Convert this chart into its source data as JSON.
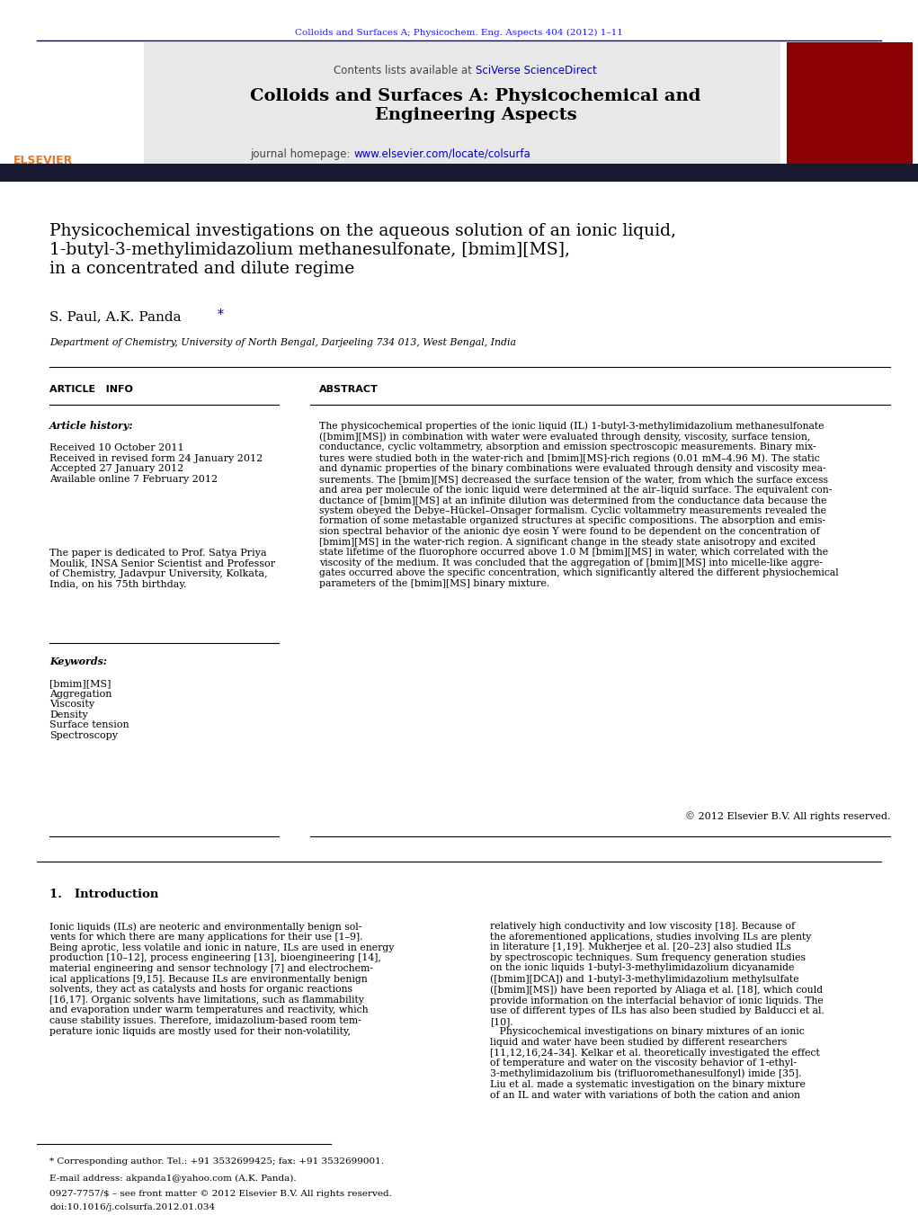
{
  "page_width": 10.21,
  "page_height": 13.51,
  "bg_color": "#ffffff",
  "top_journal_text": "Colloids and Surfaces A; Physicochem. Eng. Aspects 404 (2012) 1–11",
  "top_journal_color": "#1a1aff",
  "header_bg": "#e8e8e8",
  "header_contents": "Contents lists available at",
  "header_sciverse": "SciVerse ScienceDirect",
  "header_journal_title": "Colloids and Surfaces A: Physicochemical and\nEngineering Aspects",
  "header_homepage_label": "journal homepage:",
  "header_homepage_url": "www.elsevier.com/locate/colsurfa",
  "dark_bar_color": "#1a1a2e",
  "article_title": "Physicochemical investigations on the aqueous solution of an ionic liquid,\n1-butyl-3-methylimidazolium methanesulfonate, [bmim][MS],\nin a concentrated and dilute regime",
  "authors": "S. Paul, A.K. Panda",
  "authors_star": "*",
  "affiliation": "Department of Chemistry, University of North Bengal, Darjeeling 734 013, West Bengal, India",
  "section_article_info": "ARTICLE   INFO",
  "section_abstract": "ABSTRACT",
  "article_history_label": "Article history:",
  "article_history": "Received 10 October 2011\nReceived in revised form 24 January 2012\nAccepted 27 January 2012\nAvailable online 7 February 2012",
  "dedication": "The paper is dedicated to Prof. Satya Priya\nMoulik, INSA Senior Scientist and Professor\nof Chemistry, Jadavpur University, Kolkata,\nIndia, on his 75th birthday.",
  "keywords_label": "Keywords:",
  "keywords": "[bmim][MS]\nAggregation\nViscosity\nDensity\nSurface tension\nSpectroscopy",
  "abstract_text": "The physicochemical properties of the ionic liquid (IL) 1-butyl-3-methylimidazolium methanesulfonate\n([bmim][MS]) in combination with water were evaluated through density, viscosity, surface tension,\nconductance, cyclic voltammetry, absorption and emission spectroscopic measurements. Binary mix-\ntures were studied both in the water-rich and [bmim][MS]-rich regions (0.01 mM–4.96 M). The static\nand dynamic properties of the binary combinations were evaluated through density and viscosity mea-\nsurements. The [bmim][MS] decreased the surface tension of the water, from which the surface excess\nand area per molecule of the ionic liquid were determined at the air–liquid surface. The equivalent con-\nductance of [bmim][MS] at an infinite dilution was determined from the conductance data because the\nsystem obeyed the Debye–Hückel–Onsager formalism. Cyclic voltammetry measurements revealed the\nformation of some metastable organized structures at specific compositions. The absorption and emis-\nsion spectral behavior of the anionic dye eosin Y were found to be dependent on the concentration of\n[bmim][MS] in the water-rich region. A significant change in the steady state anisotropy and excited\nstate lifetime of the fluorophore occurred above 1.0 M [bmim][MS] in water, which correlated with the\nviscosity of the medium. It was concluded that the aggregation of [bmim][MS] into micelle-like aggre-\ngates occurred above the specific concentration, which significantly altered the different physiochemical\nparameters of the [bmim][MS] binary mixture.",
  "copyright": "© 2012 Elsevier B.V. All rights reserved.",
  "footnote_star": "* Corresponding author. Tel.: +91 3532699425; fax: +91 3532699001.",
  "footnote_email": "E-mail address: akpanda1@yahoo.com (A.K. Panda).",
  "footnote_issn": "0927-7757/$ – see front matter © 2012 Elsevier B.V. All rights reserved.",
  "footnote_doi": "doi:10.1016/j.colsurfa.2012.01.034",
  "intro_heading": "1.   Introduction",
  "intro_col1": "Ionic liquids (ILs) are neoteric and environmentally benign sol-\nvents for which there are many applications for their use [1–9].\nBeing aprotic, less volatile and ionic in nature, ILs are used in energy\nproduction [10–12], process engineering [13], bioengineering [14],\nmaterial engineering and sensor technology [7] and electrochem-\nical applications [9,15]. Because ILs are environmentally benign\nsolvents, they act as catalysts and hosts for organic reactions\n[16,17]. Organic solvents have limitations, such as flammability\nand evaporation under warm temperatures and reactivity, which\ncause stability issues. Therefore, imidazolium-based room tem-\nperature ionic liquids are mostly used for their non-volatility,",
  "intro_col2": "relatively high conductivity and low viscosity [18]. Because of\nthe aforementioned applications, studies involving ILs are plenty\nin literature [1,19]. Mukherjee et al. [20–23] also studied ILs\nby spectroscopic techniques. Sum frequency generation studies\non the ionic liquids 1-butyl-3-methylimidazolium dicyanamide\n([bmim][DCA]) and 1-butyl-3-methylimidazolium methylsulfate\n([bmim][MS]) have been reported by Aliaga et al. [18], which could\nprovide information on the interfacial behavior of ionic liquids. The\nuse of different types of ILs has also been studied by Balducci et al.\n[10].\n   Physicochemical investigations on binary mixtures of an ionic\nliquid and water have been studied by different researchers\n[11,12,16,24–34]. Kelkar et al. theoretically investigated the effect\nof temperature and water on the viscosity behavior of 1-ethyl-\n3-methylimidazolium bis (trifluoromethanesulfonyl) imide [35].\nLiu et al. made a systematic investigation on the binary mixture\nof an IL and water with variations of both the cation and anion"
}
